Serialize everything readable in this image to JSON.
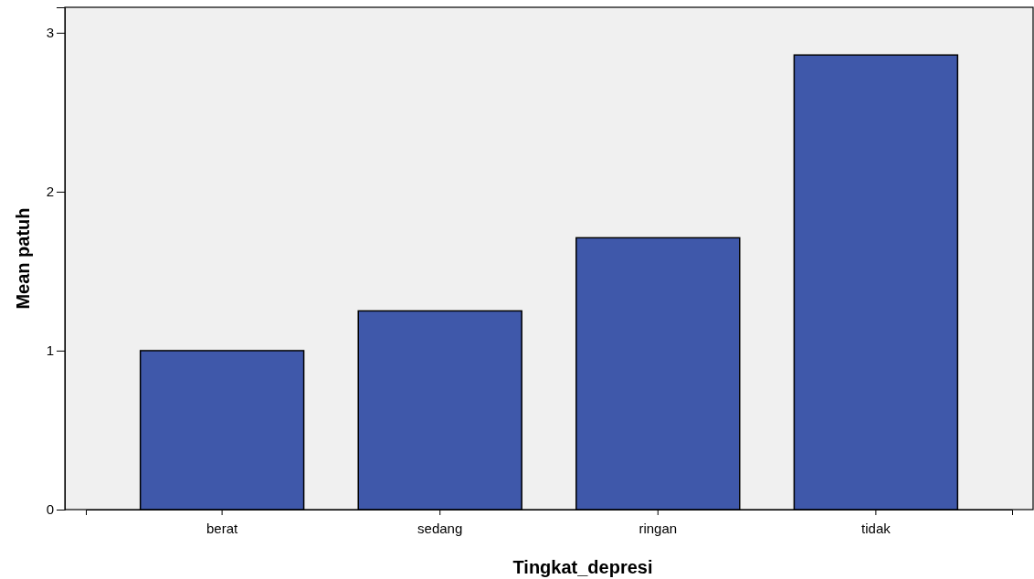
{
  "chart_data": {
    "type": "bar",
    "xlabel": "Tingkat_depresi",
    "ylabel": "Mean patuh",
    "categories": [
      "berat",
      "sedang",
      "ringan",
      "tidak"
    ],
    "values": [
      1.0,
      1.25,
      1.71,
      2.86
    ],
    "color": "#3f58aa",
    "ylim": [
      0,
      3.16
    ],
    "yticks": [
      0,
      1,
      2,
      3
    ],
    "grid": false
  }
}
